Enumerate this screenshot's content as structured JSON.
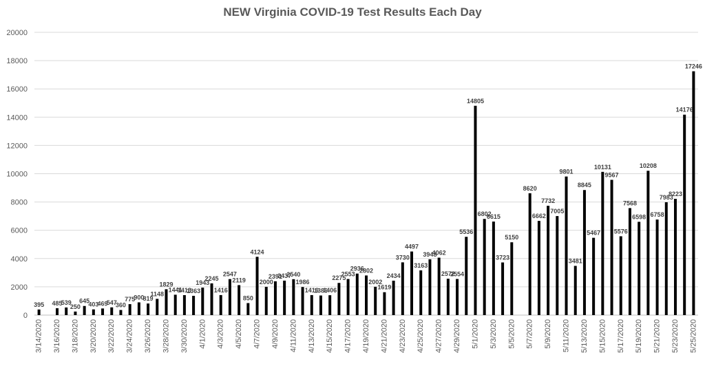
{
  "chart_data": {
    "type": "bar",
    "title": "NEW Virginia COVID-19 Test Results Each Day",
    "xlabel": "",
    "ylabel": "",
    "ylim": [
      0,
      20000
    ],
    "y_ticks": [
      0,
      2000,
      4000,
      6000,
      8000,
      10000,
      12000,
      14000,
      16000,
      18000,
      20000
    ],
    "grid": true,
    "legend": "none",
    "bar_color": "#000000",
    "categories": [
      "3/14/2020",
      "3/15/2020",
      "3/16/2020",
      "3/17/2020",
      "3/18/2020",
      "3/19/2020",
      "3/20/2020",
      "3/21/2020",
      "3/22/2020",
      "3/23/2020",
      "3/24/2020",
      "3/25/2020",
      "3/26/2020",
      "3/27/2020",
      "3/28/2020",
      "3/29/2020",
      "3/30/2020",
      "3/31/2020",
      "4/1/2020",
      "4/2/2020",
      "4/3/2020",
      "4/4/2020",
      "4/5/2020",
      "4/6/2020",
      "4/7/2020",
      "4/8/2020",
      "4/9/2020",
      "4/10/2020",
      "4/11/2020",
      "4/12/2020",
      "4/13/2020",
      "4/14/2020",
      "4/15/2020",
      "4/16/2020",
      "4/17/2020",
      "4/18/2020",
      "4/19/2020",
      "4/20/2020",
      "4/21/2020",
      "4/22/2020",
      "4/23/2020",
      "4/24/2020",
      "4/25/2020",
      "4/26/2020",
      "4/27/2020",
      "4/28/2020",
      "4/29/2020",
      "4/30/2020",
      "5/1/2020",
      "5/2/2020",
      "5/3/2020",
      "5/4/2020",
      "5/5/2020",
      "5/6/2020",
      "5/7/2020",
      "5/8/2020",
      "5/9/2020",
      "5/10/2020",
      "5/11/2020",
      "5/12/2020",
      "5/13/2020",
      "5/14/2020",
      "5/15/2020",
      "5/16/2020",
      "5/17/2020",
      "5/18/2020",
      "5/19/2020",
      "5/20/2020",
      "5/21/2020",
      "5/22/2020",
      "5/23/2020",
      "5/24/2020",
      "5/25/2020"
    ],
    "tick_labels": [
      "3/14/2020",
      "3/16/2020",
      "3/18/2020",
      "3/20/2020",
      "3/22/2020",
      "3/24/2020",
      "3/26/2020",
      "3/28/2020",
      "3/30/2020",
      "4/1/2020",
      "4/3/2020",
      "4/5/2020",
      "4/7/2020",
      "4/9/2020",
      "4/11/2020",
      "4/13/2020",
      "4/15/2020",
      "4/17/2020",
      "4/19/2020",
      "4/21/2020",
      "4/23/2020",
      "4/25/2020",
      "4/27/2020",
      "4/29/2020",
      "5/1/2020",
      "5/3/2020",
      "5/5/2020",
      "5/7/2020",
      "5/9/2020",
      "5/11/2020",
      "5/13/2020",
      "5/15/2020",
      "5/17/2020",
      "5/19/2020",
      "5/21/2020",
      "5/23/2020",
      "5/25/2020"
    ],
    "values": [
      395,
      null,
      485,
      539,
      250,
      645,
      403,
      469,
      547,
      360,
      775,
      900,
      819,
      1148,
      1829,
      1441,
      1413,
      1363,
      1943,
      2245,
      1416,
      2547,
      2119,
      850,
      4124,
      2000,
      2391,
      2437,
      2540,
      1986,
      1416,
      1386,
      1406,
      2275,
      2553,
      2936,
      2802,
      2002,
      1619,
      2434,
      3730,
      4497,
      3163,
      3948,
      4062,
      2572,
      2554,
      5536,
      14805,
      6802,
      6615,
      3723,
      5150,
      null,
      8620,
      6662,
      7732,
      7005,
      9801,
      3481,
      8845,
      5467,
      10131,
      9567,
      5576,
      7568,
      6598,
      10208,
      6758,
      7983,
      8223,
      14176,
      17246
    ]
  }
}
